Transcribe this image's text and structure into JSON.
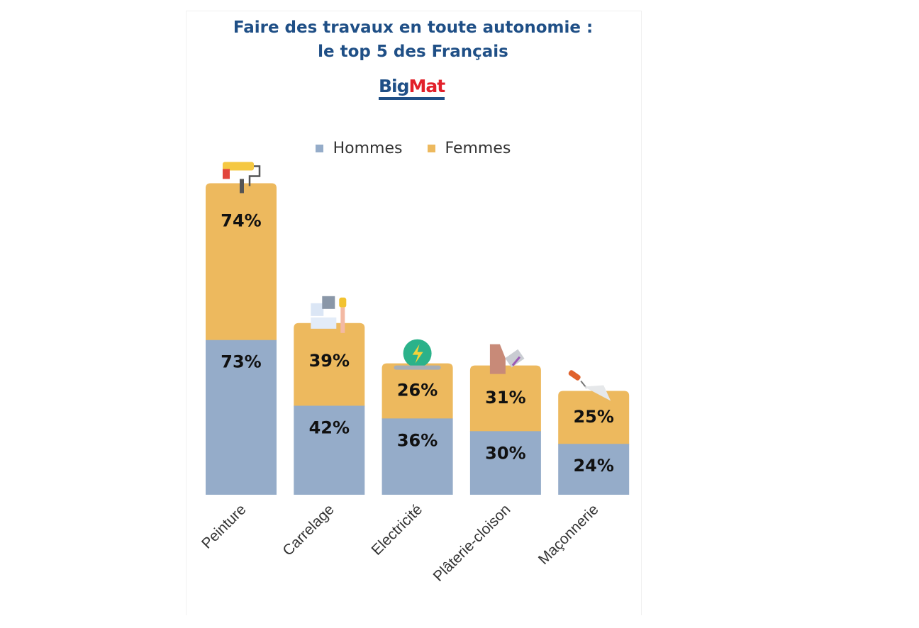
{
  "chart_data": {
    "type": "bar",
    "stacked": true,
    "title": "Faire des travaux en toute autonomie :",
    "subtitle": "le top 5 des Français",
    "logo": "BigMat",
    "categories": [
      "Peinture",
      "Carrelage",
      "Electricité",
      "Plâterie-cloison",
      "Maçonnerie"
    ],
    "series": [
      {
        "name": "Hommes",
        "values": [
          73,
          42,
          36,
          30,
          24
        ],
        "color": "#95acc9"
      },
      {
        "name": "Femmes",
        "values": [
          74,
          39,
          26,
          31,
          25
        ],
        "color": "#edb95e"
      }
    ],
    "value_suffix": "%",
    "category_icons": [
      "paint-roller-icon",
      "tiles-icon",
      "electricity-icon",
      "plaster-icon",
      "trowel-icon"
    ],
    "legend_position": "top",
    "grid": false,
    "y_axis_visible": false,
    "title_color": "#1f4f86"
  }
}
